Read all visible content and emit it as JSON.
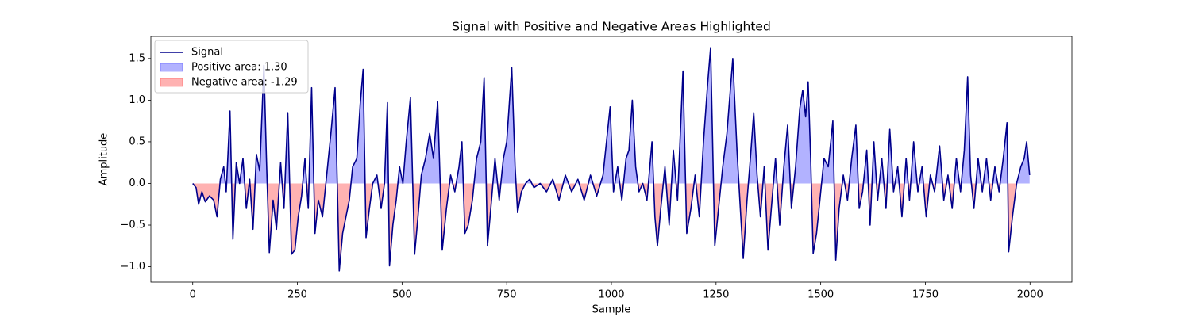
{
  "chart_data": {
    "type": "line",
    "title": "Signal with Positive and Negative Areas Highlighted",
    "x_label": "Sample",
    "y_label": "Amplitude",
    "x": [
      0,
      8,
      14,
      22,
      30,
      40,
      50,
      58,
      66,
      74,
      80,
      89,
      96,
      104,
      112,
      120,
      128,
      136,
      144,
      152,
      160,
      170,
      176,
      183,
      192,
      200,
      210,
      218,
      227,
      236,
      244,
      252,
      260,
      268,
      276,
      284,
      292,
      300,
      310,
      320,
      330,
      340,
      350,
      358,
      366,
      374,
      382,
      392,
      400,
      407,
      414,
      422,
      430,
      440,
      450,
      458,
      465,
      470,
      478,
      486,
      494,
      502,
      510,
      520,
      530,
      538,
      546,
      556,
      566,
      575,
      585,
      596,
      606,
      616,
      626,
      636,
      643,
      650,
      658,
      668,
      678,
      688,
      696,
      704,
      712,
      722,
      732,
      742,
      750,
      762,
      770,
      776,
      785,
      795,
      805,
      815,
      830,
      845,
      860,
      875,
      890,
      905,
      920,
      935,
      950,
      965,
      980,
      997,
      1005,
      1015,
      1025,
      1035,
      1042,
      1050,
      1058,
      1066,
      1075,
      1085,
      1097,
      1104,
      1110,
      1118,
      1128,
      1138,
      1148,
      1158,
      1171,
      1180,
      1190,
      1200,
      1210,
      1220,
      1230,
      1237,
      1247,
      1256,
      1266,
      1276,
      1290,
      1300,
      1308,
      1315,
      1324,
      1332,
      1340,
      1348,
      1356,
      1365,
      1374,
      1382,
      1392,
      1402,
      1412,
      1421,
      1430,
      1440,
      1450,
      1457,
      1464,
      1470,
      1476,
      1482,
      1490,
      1498,
      1508,
      1518,
      1529,
      1536,
      1544,
      1554,
      1564,
      1574,
      1584,
      1592,
      1600,
      1610,
      1618,
      1627,
      1636,
      1646,
      1656,
      1665,
      1674,
      1684,
      1694,
      1704,
      1712,
      1722,
      1732,
      1742,
      1752,
      1762,
      1772,
      1784,
      1794,
      1804,
      1814,
      1824,
      1834,
      1843,
      1851,
      1858,
      1866,
      1876,
      1886,
      1896,
      1906,
      1916,
      1926,
      1936,
      1945,
      1949,
      1958,
      1968,
      1978,
      1986,
      1992,
      1999
    ],
    "series": [
      {
        "name": "Signal",
        "color": "#00008b",
        "values": [
          0,
          -0.05,
          -0.25,
          -0.1,
          -0.22,
          -0.15,
          -0.2,
          -0.4,
          0.05,
          0.2,
          -0.1,
          0.87,
          -0.67,
          0.25,
          0.0,
          0.3,
          -0.3,
          0.05,
          -0.55,
          0.35,
          0.15,
          1.42,
          0.3,
          -0.83,
          -0.2,
          -0.55,
          0.25,
          -0.3,
          0.85,
          -0.85,
          -0.8,
          -0.4,
          -0.15,
          0.3,
          -0.3,
          1.15,
          -0.6,
          -0.2,
          -0.4,
          0.1,
          0.6,
          1.15,
          -1.05,
          -0.6,
          -0.4,
          -0.2,
          0.2,
          0.3,
          0.95,
          1.37,
          -0.65,
          -0.3,
          0.0,
          0.1,
          -0.3,
          0.0,
          0.97,
          -0.99,
          -0.5,
          -0.2,
          0.2,
          0.0,
          0.5,
          1.03,
          -0.85,
          -0.4,
          0.1,
          0.3,
          0.6,
          0.3,
          0.98,
          -0.8,
          -0.3,
          0.1,
          -0.1,
          0.2,
          0.5,
          -0.6,
          -0.5,
          -0.2,
          0.3,
          0.5,
          1.27,
          -0.75,
          -0.3,
          0.3,
          -0.2,
          0.3,
          0.5,
          1.39,
          0.2,
          -0.35,
          -0.1,
          0.0,
          0.05,
          -0.05,
          0.0,
          -0.1,
          0.05,
          -0.2,
          0.1,
          -0.1,
          0.05,
          -0.2,
          0.1,
          -0.15,
          0.1,
          0.92,
          -0.1,
          0.2,
          -0.2,
          0.3,
          0.4,
          1.0,
          0.2,
          -0.1,
          0.0,
          -0.2,
          0.5,
          -0.4,
          -0.75,
          -0.3,
          0.2,
          -0.5,
          0.4,
          -0.2,
          1.35,
          -0.6,
          -0.3,
          0.1,
          -0.4,
          0.5,
          1.2,
          1.63,
          -0.75,
          -0.3,
          0.2,
          0.6,
          1.5,
          0.4,
          -0.3,
          -0.9,
          -0.2,
          0.3,
          0.85,
          0.1,
          -0.4,
          0.2,
          -0.8,
          -0.3,
          0.3,
          -0.5,
          0.2,
          0.7,
          -0.3,
          0.2,
          0.9,
          1.12,
          0.8,
          1.22,
          0.3,
          -0.84,
          -0.6,
          -0.2,
          0.3,
          0.2,
          0.75,
          -0.92,
          -0.3,
          0.1,
          -0.2,
          0.3,
          0.7,
          -0.3,
          -0.1,
          0.4,
          -0.5,
          0.5,
          -0.2,
          0.3,
          -0.3,
          0.65,
          -0.1,
          0.2,
          -0.4,
          0.3,
          -0.2,
          0.5,
          -0.1,
          0.2,
          -0.4,
          0.1,
          -0.1,
          0.45,
          -0.2,
          0.1,
          -0.3,
          0.3,
          -0.1,
          0.4,
          1.28,
          0.1,
          -0.3,
          0.3,
          -0.1,
          0.3,
          -0.2,
          0.2,
          -0.1,
          0.3,
          0.73,
          -0.82,
          -0.4,
          0.0,
          0.2,
          0.3,
          0.5,
          0.1
        ]
      }
    ],
    "fills": [
      {
        "name": "Positive area: 1.30",
        "color": "#0000ff",
        "opacity": 0.3,
        "side": "above"
      },
      {
        "name": "Negative area: -1.29",
        "color": "#ff0000",
        "opacity": 0.3,
        "side": "below"
      }
    ],
    "xlim": [
      -100,
      2100
    ],
    "xticks": [
      0,
      250,
      500,
      750,
      1000,
      1250,
      1500,
      1750,
      2000
    ],
    "ylim": [
      -1.185,
      1.765
    ],
    "yticks": [
      {
        "value": -1,
        "label": "−1.0"
      },
      {
        "value": -0.5,
        "label": "−0.5"
      },
      {
        "value": 0,
        "label": "0.0"
      },
      {
        "value": 0.5,
        "label": "0.5"
      },
      {
        "value": 1,
        "label": "1.0"
      },
      {
        "value": 1.5,
        "label": "1.5"
      }
    ],
    "legend": "upper left"
  }
}
